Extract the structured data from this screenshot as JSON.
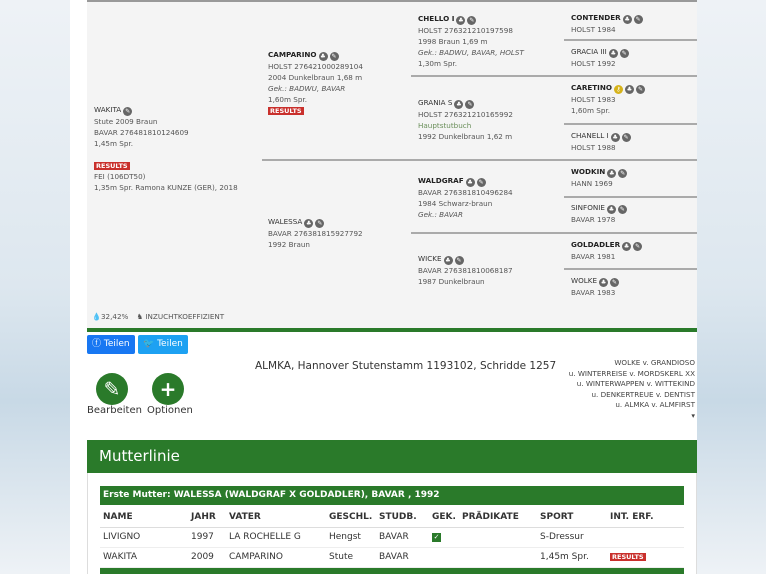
{
  "pedigree": {
    "horse": {
      "name": "WAKITA",
      "line1": "Stute 2009 Braun",
      "line2": "BAVAR 276481810124609",
      "sport": "1,45m Spr.",
      "results": "RESULTS",
      "fei": "FEI (106DT50)",
      "fei_result": "1,35m Spr. Ramona KUNZE (GER), 2018"
    },
    "sire": {
      "name": "CAMPARINO",
      "line1": "HOLST 276421000289104",
      "line2": "2004 Dunkelbraun 1,68 m",
      "gek": "Gek.: BADWU, BAVAR",
      "sport": "1,60m Spr.",
      "results": "RESULTS"
    },
    "dam": {
      "name": "WALESSA",
      "line1": "BAVAR 276381815927792",
      "line2": "1992 Braun"
    },
    "ss": {
      "name": "CHELLO I",
      "line1": "HOLST 276321210197598",
      "line2": "1998 Braun 1,69 m",
      "gek": "Gek.: BADWU, BAVAR, HOLST",
      "sport": "1,30m Spr."
    },
    "sd": {
      "name": "GRANIA S",
      "line1": "HOLST 276321210165992",
      "line2": "Hauptstutbuch",
      "line3": "1992 Dunkelbraun 1,62 m"
    },
    "ds": {
      "name": "WALDGRAF",
      "line1": "BAVAR 276381810496284",
      "line2": "1984 Schwarz-braun",
      "gek": "Gek.: BAVAR"
    },
    "dd": {
      "name": "WICKE",
      "line1": "BAVAR 276381810068187",
      "line2": "1987 Dunkelbraun"
    },
    "g4": [
      {
        "name": "CONTENDER",
        "line1": "HOLST 1984"
      },
      {
        "name": "GRACIA III",
        "line1": "HOLST 1992"
      },
      {
        "name": "CARETINO",
        "line1": "HOLST 1983",
        "sport": "1,60m Spr."
      },
      {
        "name": "CHANELL I",
        "line1": "HOLST 1988"
      },
      {
        "name": "WODKIN",
        "line1": "HANN 1969"
      },
      {
        "name": "SINFONIE",
        "line1": "BAVAR 1978"
      },
      {
        "name": "GOLDADLER",
        "line1": "BAVAR 1981"
      },
      {
        "name": "WOLKE",
        "line1": "BAVAR 1983"
      }
    ],
    "inbreeding_value": "32,42%",
    "inbreeding_label": "INZUCHTKOEFFIZIENT"
  },
  "share": {
    "facebook": "Teilen",
    "twitter": "Teilen",
    "facebook_color": "#1877f2",
    "twitter_color": "#1da1f2"
  },
  "actions": {
    "edit": "Bearbeiten",
    "options": "Optionen"
  },
  "stamm": "ALMKA, Hannover Stutenstamm 1193102, Schridde 1257",
  "damline": [
    "WOLKE v. GRANDIOSO",
    "u. WINTERREISE v. MORDSKERL XX",
    "u. WINTERWAPPEN v. WITTEKIND",
    "u. DENKERTREUE v. DENTIST",
    "u. ALMKA v. ALMFIRST"
  ],
  "mutterlinie": {
    "title": "Mutterlinie",
    "first_dam": "Erste Mutter: WALESSA (WALDGRAF X GOLDADLER), BAVAR , 1992",
    "columns": [
      "NAME",
      "JAHR",
      "VATER",
      "GESCHL.",
      "STUDB.",
      "GEK.",
      "PRÄDIKATE",
      "SPORT",
      "INT. ERF."
    ],
    "rows": [
      {
        "name": "LIVIGNO",
        "year": "1997",
        "sire": "LA ROCHELLE G",
        "sex": "Hengst",
        "studbook": "BAVAR",
        "gek": true,
        "pred": "",
        "sport": "S-Dressur",
        "int": ""
      },
      {
        "name": "WAKITA",
        "year": "2009",
        "sire": "CAMPARINO",
        "sex": "Stute",
        "studbook": "BAVAR",
        "gek": false,
        "pred": "",
        "sport": "1,45m Spr.",
        "int": "RESULTS"
      }
    ]
  },
  "accent": "#2a7a2a"
}
